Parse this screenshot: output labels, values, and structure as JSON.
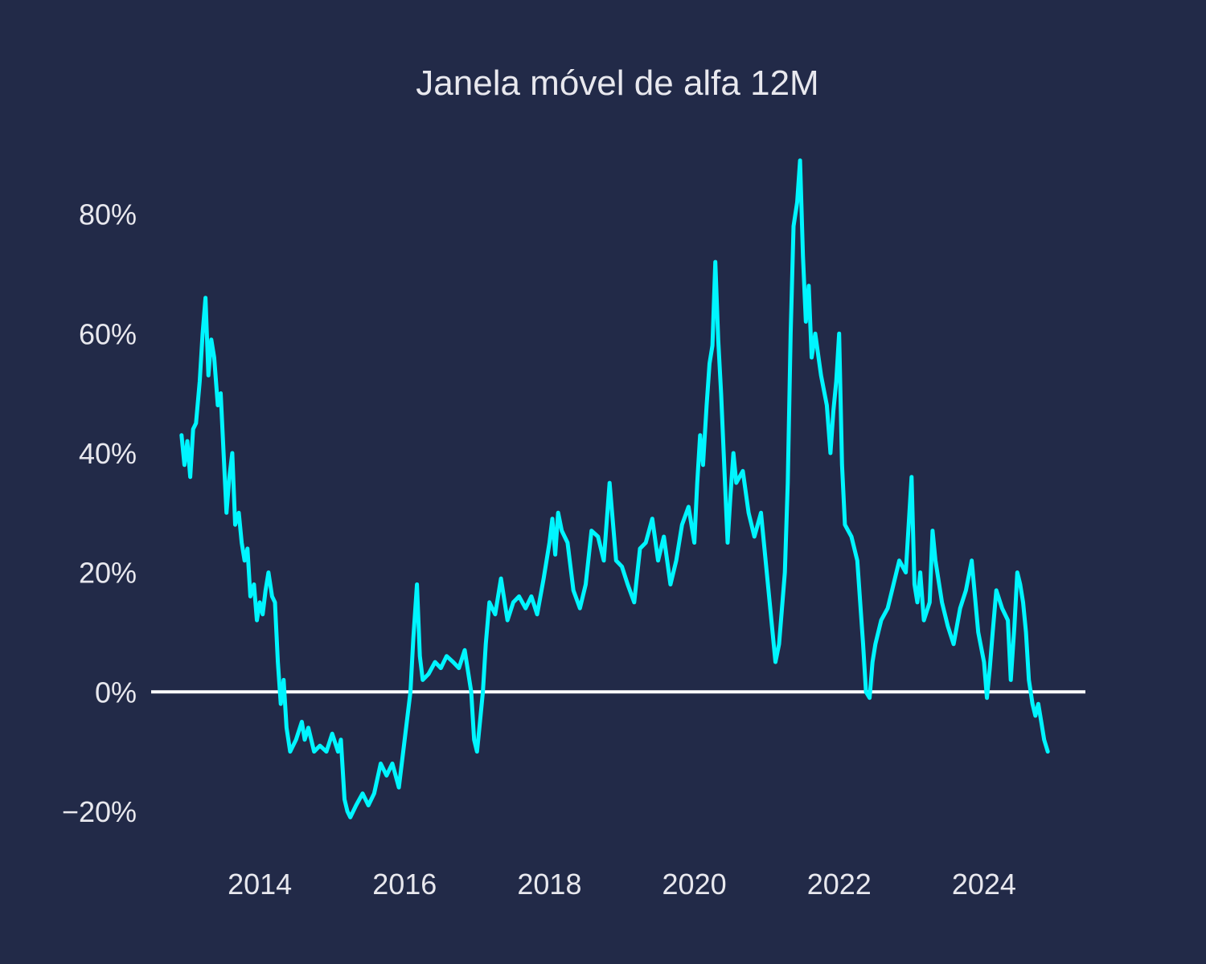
{
  "chart_data": {
    "type": "line",
    "title": "Janela móvel de alfa 12M",
    "xlabel": "",
    "ylabel": "",
    "x_tick_labels": [
      "2014",
      "2016",
      "2018",
      "2020",
      "2022",
      "2024"
    ],
    "y_tick_labels": [
      "−20%",
      "0%",
      "20%",
      "40%",
      "60%",
      "80%"
    ],
    "y_ticks": [
      -20,
      0,
      20,
      40,
      60,
      80
    ],
    "x_ticks": [
      2014,
      2016,
      2018,
      2020,
      2022,
      2024
    ],
    "xlim": [
      2012.5,
      2025.4
    ],
    "ylim": [
      -27,
      93
    ],
    "grid": false,
    "reference_line": {
      "y": 0,
      "color": "#ffffff"
    },
    "colors": {
      "background": "#222a48",
      "series": "#00f5ff",
      "text": "#e8e8ee"
    },
    "series": [
      {
        "values": [
          [
            2012.92,
            43
          ],
          [
            2012.96,
            38
          ],
          [
            2013.0,
            42
          ],
          [
            2013.04,
            36
          ],
          [
            2013.08,
            44
          ],
          [
            2013.12,
            45
          ],
          [
            2013.17,
            52
          ],
          [
            2013.21,
            60
          ],
          [
            2013.25,
            66
          ],
          [
            2013.29,
            53
          ],
          [
            2013.33,
            59
          ],
          [
            2013.37,
            56
          ],
          [
            2013.42,
            48
          ],
          [
            2013.46,
            50
          ],
          [
            2013.5,
            40
          ],
          [
            2013.54,
            30
          ],
          [
            2013.58,
            36
          ],
          [
            2013.62,
            40
          ],
          [
            2013.66,
            28
          ],
          [
            2013.71,
            30
          ],
          [
            2013.75,
            25
          ],
          [
            2013.79,
            22
          ],
          [
            2013.83,
            24
          ],
          [
            2013.87,
            16
          ],
          [
            2013.92,
            18
          ],
          [
            2013.96,
            12
          ],
          [
            2014.0,
            15
          ],
          [
            2014.04,
            13
          ],
          [
            2014.08,
            17
          ],
          [
            2014.12,
            20
          ],
          [
            2014.17,
            16
          ],
          [
            2014.21,
            15
          ],
          [
            2014.25,
            5
          ],
          [
            2014.29,
            -2
          ],
          [
            2014.33,
            2
          ],
          [
            2014.37,
            -6
          ],
          [
            2014.42,
            -10
          ],
          [
            2014.5,
            -8
          ],
          [
            2014.58,
            -5
          ],
          [
            2014.62,
            -8
          ],
          [
            2014.67,
            -6
          ],
          [
            2014.75,
            -10
          ],
          [
            2014.83,
            -9
          ],
          [
            2014.92,
            -10
          ],
          [
            2015.0,
            -7
          ],
          [
            2015.08,
            -10
          ],
          [
            2015.12,
            -8
          ],
          [
            2015.17,
            -18
          ],
          [
            2015.21,
            -20
          ],
          [
            2015.25,
            -21
          ],
          [
            2015.33,
            -19
          ],
          [
            2015.42,
            -17
          ],
          [
            2015.5,
            -19
          ],
          [
            2015.58,
            -17
          ],
          [
            2015.67,
            -12
          ],
          [
            2015.75,
            -14
          ],
          [
            2015.83,
            -12
          ],
          [
            2015.92,
            -16
          ],
          [
            2016.0,
            -8
          ],
          [
            2016.04,
            -4
          ],
          [
            2016.08,
            0
          ],
          [
            2016.12,
            9
          ],
          [
            2016.17,
            18
          ],
          [
            2016.21,
            6
          ],
          [
            2016.25,
            2
          ],
          [
            2016.33,
            3
          ],
          [
            2016.42,
            5
          ],
          [
            2016.5,
            4
          ],
          [
            2016.58,
            6
          ],
          [
            2016.67,
            5
          ],
          [
            2016.75,
            4
          ],
          [
            2016.83,
            7
          ],
          [
            2016.92,
            0
          ],
          [
            2016.96,
            -8
          ],
          [
            2017.0,
            -10
          ],
          [
            2017.04,
            -5
          ],
          [
            2017.08,
            0
          ],
          [
            2017.12,
            8
          ],
          [
            2017.17,
            15
          ],
          [
            2017.25,
            13
          ],
          [
            2017.33,
            19
          ],
          [
            2017.42,
            12
          ],
          [
            2017.5,
            15
          ],
          [
            2017.58,
            16
          ],
          [
            2017.67,
            14
          ],
          [
            2017.75,
            16
          ],
          [
            2017.83,
            13
          ],
          [
            2017.92,
            19
          ],
          [
            2018.0,
            25
          ],
          [
            2018.04,
            29
          ],
          [
            2018.08,
            23
          ],
          [
            2018.12,
            30
          ],
          [
            2018.17,
            27
          ],
          [
            2018.25,
            25
          ],
          [
            2018.33,
            17
          ],
          [
            2018.42,
            14
          ],
          [
            2018.5,
            18
          ],
          [
            2018.58,
            27
          ],
          [
            2018.67,
            26
          ],
          [
            2018.75,
            22
          ],
          [
            2018.83,
            35
          ],
          [
            2018.92,
            22
          ],
          [
            2019.0,
            21
          ],
          [
            2019.08,
            18
          ],
          [
            2019.17,
            15
          ],
          [
            2019.25,
            24
          ],
          [
            2019.33,
            25
          ],
          [
            2019.42,
            29
          ],
          [
            2019.5,
            22
          ],
          [
            2019.58,
            26
          ],
          [
            2019.67,
            18
          ],
          [
            2019.75,
            22
          ],
          [
            2019.83,
            28
          ],
          [
            2019.92,
            31
          ],
          [
            2020.0,
            25
          ],
          [
            2020.04,
            35
          ],
          [
            2020.08,
            43
          ],
          [
            2020.12,
            38
          ],
          [
            2020.17,
            48
          ],
          [
            2020.21,
            55
          ],
          [
            2020.25,
            58
          ],
          [
            2020.29,
            72
          ],
          [
            2020.33,
            59
          ],
          [
            2020.37,
            50
          ],
          [
            2020.42,
            36
          ],
          [
            2020.46,
            25
          ],
          [
            2020.5,
            33
          ],
          [
            2020.54,
            40
          ],
          [
            2020.58,
            35
          ],
          [
            2020.67,
            37
          ],
          [
            2020.75,
            30
          ],
          [
            2020.83,
            26
          ],
          [
            2020.92,
            30
          ],
          [
            2021.0,
            20
          ],
          [
            2021.04,
            15
          ],
          [
            2021.08,
            10
          ],
          [
            2021.12,
            5
          ],
          [
            2021.17,
            8
          ],
          [
            2021.21,
            14
          ],
          [
            2021.25,
            20
          ],
          [
            2021.29,
            35
          ],
          [
            2021.33,
            60
          ],
          [
            2021.37,
            78
          ],
          [
            2021.42,
            82
          ],
          [
            2021.46,
            89
          ],
          [
            2021.5,
            73
          ],
          [
            2021.54,
            62
          ],
          [
            2021.58,
            68
          ],
          [
            2021.62,
            56
          ],
          [
            2021.67,
            60
          ],
          [
            2021.75,
            53
          ],
          [
            2021.83,
            48
          ],
          [
            2021.88,
            40
          ],
          [
            2021.92,
            47
          ],
          [
            2021.96,
            52
          ],
          [
            2022.0,
            60
          ],
          [
            2022.04,
            38
          ],
          [
            2022.08,
            28
          ],
          [
            2022.17,
            26
          ],
          [
            2022.25,
            22
          ],
          [
            2022.29,
            15
          ],
          [
            2022.33,
            8
          ],
          [
            2022.37,
            0
          ],
          [
            2022.42,
            -1
          ],
          [
            2022.46,
            5
          ],
          [
            2022.5,
            8
          ],
          [
            2022.58,
            12
          ],
          [
            2022.67,
            14
          ],
          [
            2022.75,
            18
          ],
          [
            2022.83,
            22
          ],
          [
            2022.92,
            20
          ],
          [
            2023.0,
            36
          ],
          [
            2023.04,
            18
          ],
          [
            2023.08,
            15
          ],
          [
            2023.12,
            20
          ],
          [
            2023.17,
            12
          ],
          [
            2023.25,
            15
          ],
          [
            2023.29,
            27
          ],
          [
            2023.33,
            22
          ],
          [
            2023.42,
            15
          ],
          [
            2023.5,
            11
          ],
          [
            2023.58,
            8
          ],
          [
            2023.67,
            14
          ],
          [
            2023.75,
            17
          ],
          [
            2023.83,
            22
          ],
          [
            2023.92,
            10
          ],
          [
            2024.0,
            5
          ],
          [
            2024.04,
            -1
          ],
          [
            2024.08,
            4
          ],
          [
            2024.12,
            10
          ],
          [
            2024.17,
            17
          ],
          [
            2024.25,
            14
          ],
          [
            2024.33,
            12
          ],
          [
            2024.37,
            2
          ],
          [
            2024.42,
            11
          ],
          [
            2024.46,
            20
          ],
          [
            2024.5,
            18
          ],
          [
            2024.54,
            15
          ],
          [
            2024.58,
            10
          ],
          [
            2024.62,
            2
          ],
          [
            2024.67,
            -2
          ],
          [
            2024.71,
            -4
          ],
          [
            2024.75,
            -2
          ],
          [
            2024.79,
            -5
          ],
          [
            2024.83,
            -8
          ],
          [
            2024.88,
            -10
          ]
        ]
      }
    ]
  }
}
